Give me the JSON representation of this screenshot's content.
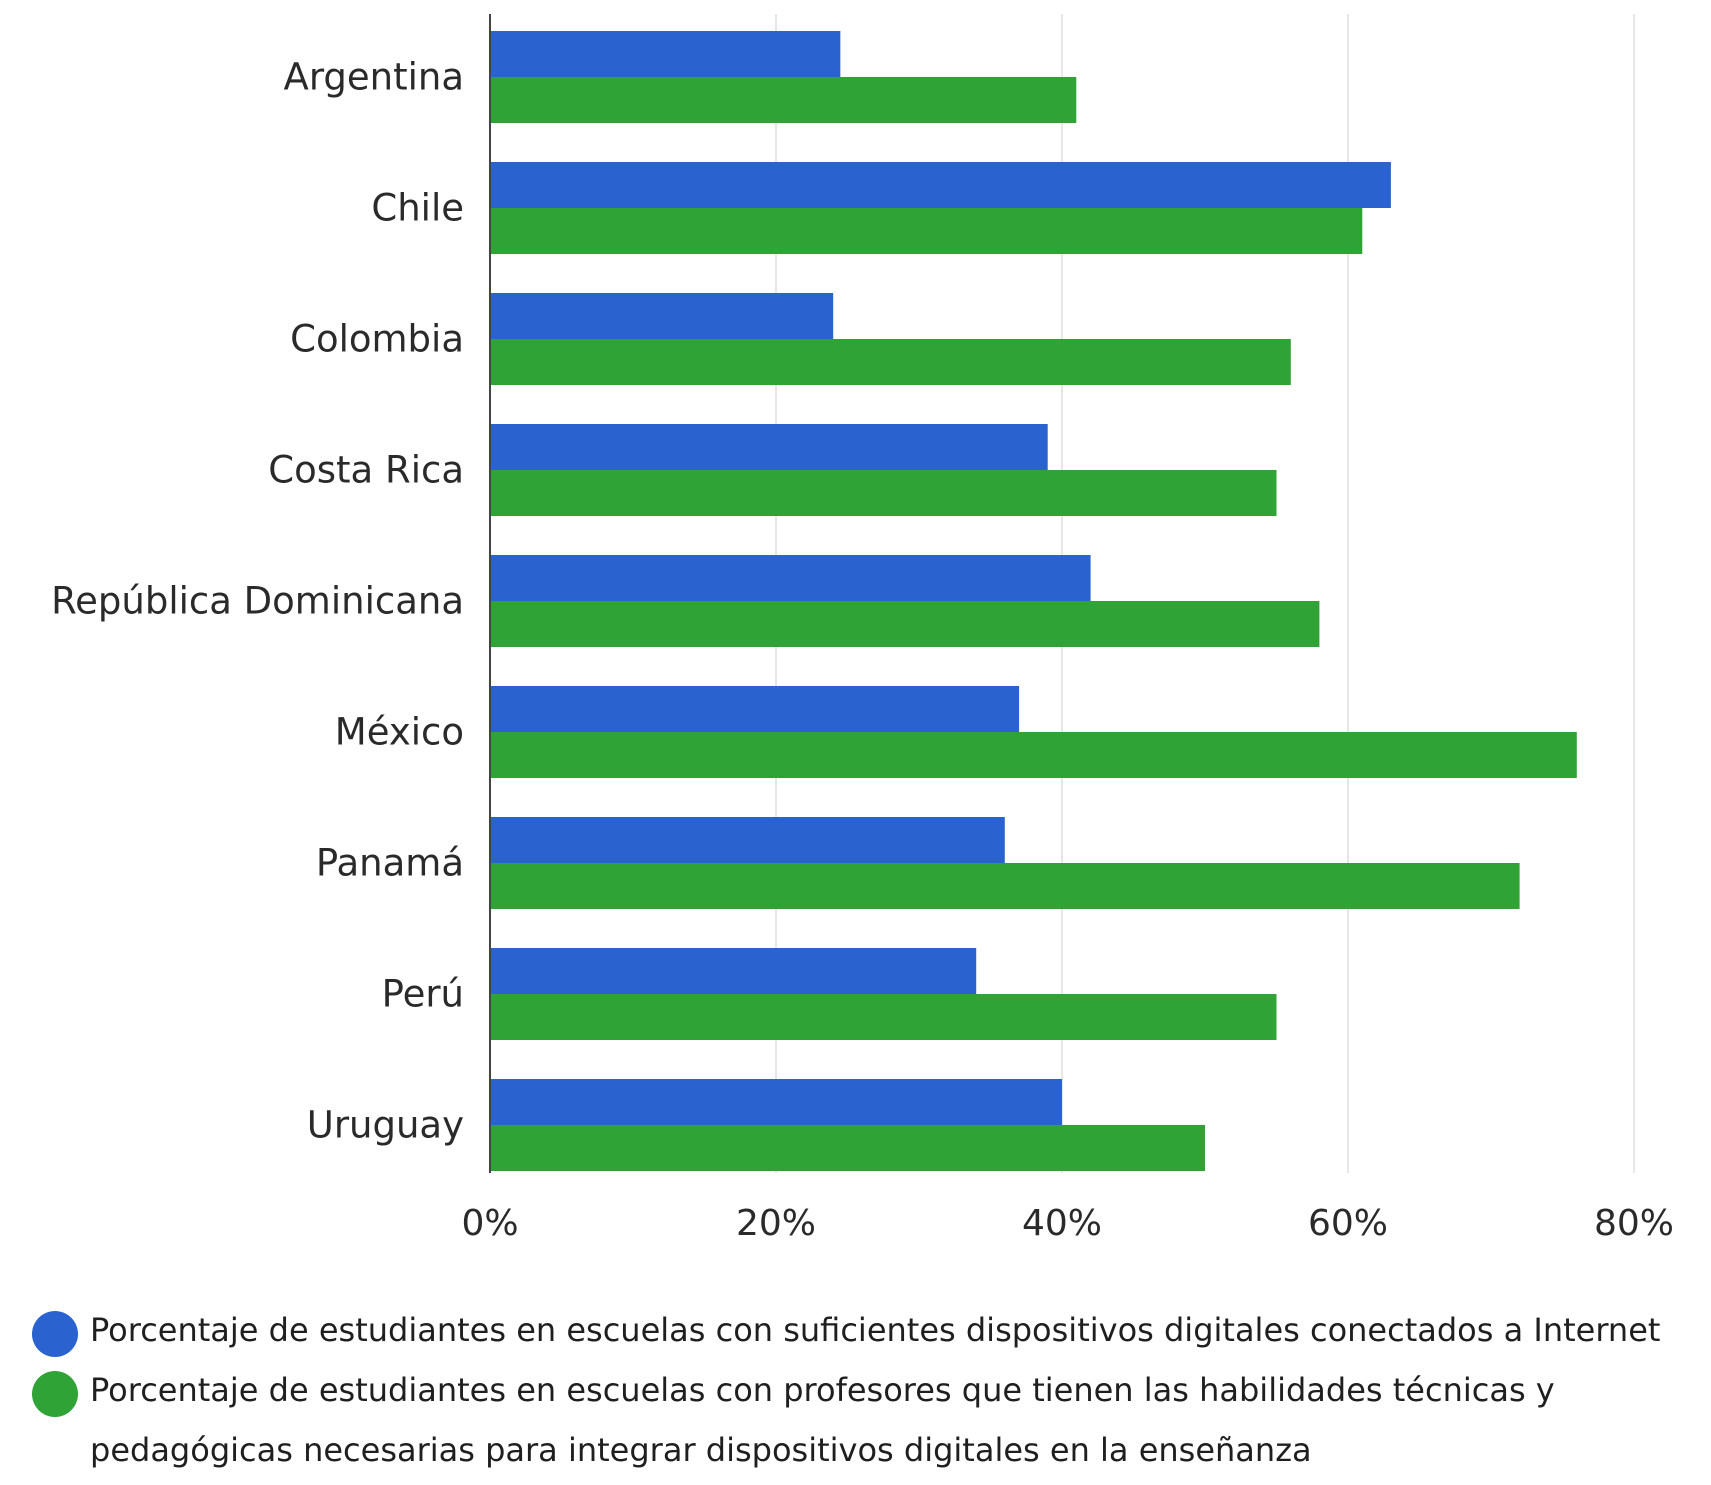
{
  "chart_data": {
    "type": "bar",
    "orientation": "horizontal",
    "title": "",
    "xlabel": "",
    "ylabel": "",
    "categories": [
      "Argentina",
      "Chile",
      "Colombia",
      "Costa Rica",
      "República Dominicana",
      "México",
      "Panamá",
      "Perú",
      "Uruguay"
    ],
    "series": [
      {
        "name": "Porcentaje de estudiantes en escuelas con suficientes dispositivos digitales conectados a Internet",
        "color": "#2a63cf",
        "values": [
          24.5,
          63,
          24,
          39,
          42,
          37,
          36,
          34,
          40
        ]
      },
      {
        "name": "Porcentaje de estudiantes en escuelas con profesores que tienen las habilidades técnicas y pedagógicas necesarias para integrar dispositivos digitales en la enseñanza",
        "color": "#2fa336",
        "values": [
          41,
          61,
          56,
          55,
          58,
          76,
          72,
          55,
          50
        ]
      }
    ],
    "xlim": [
      0,
      80
    ],
    "xticks": [
      0,
      20,
      40,
      60,
      80
    ],
    "xtick_labels": [
      "0%",
      "20%",
      "40%",
      "60%",
      "80%"
    ],
    "grid": "vertical",
    "legend": "bottom"
  }
}
